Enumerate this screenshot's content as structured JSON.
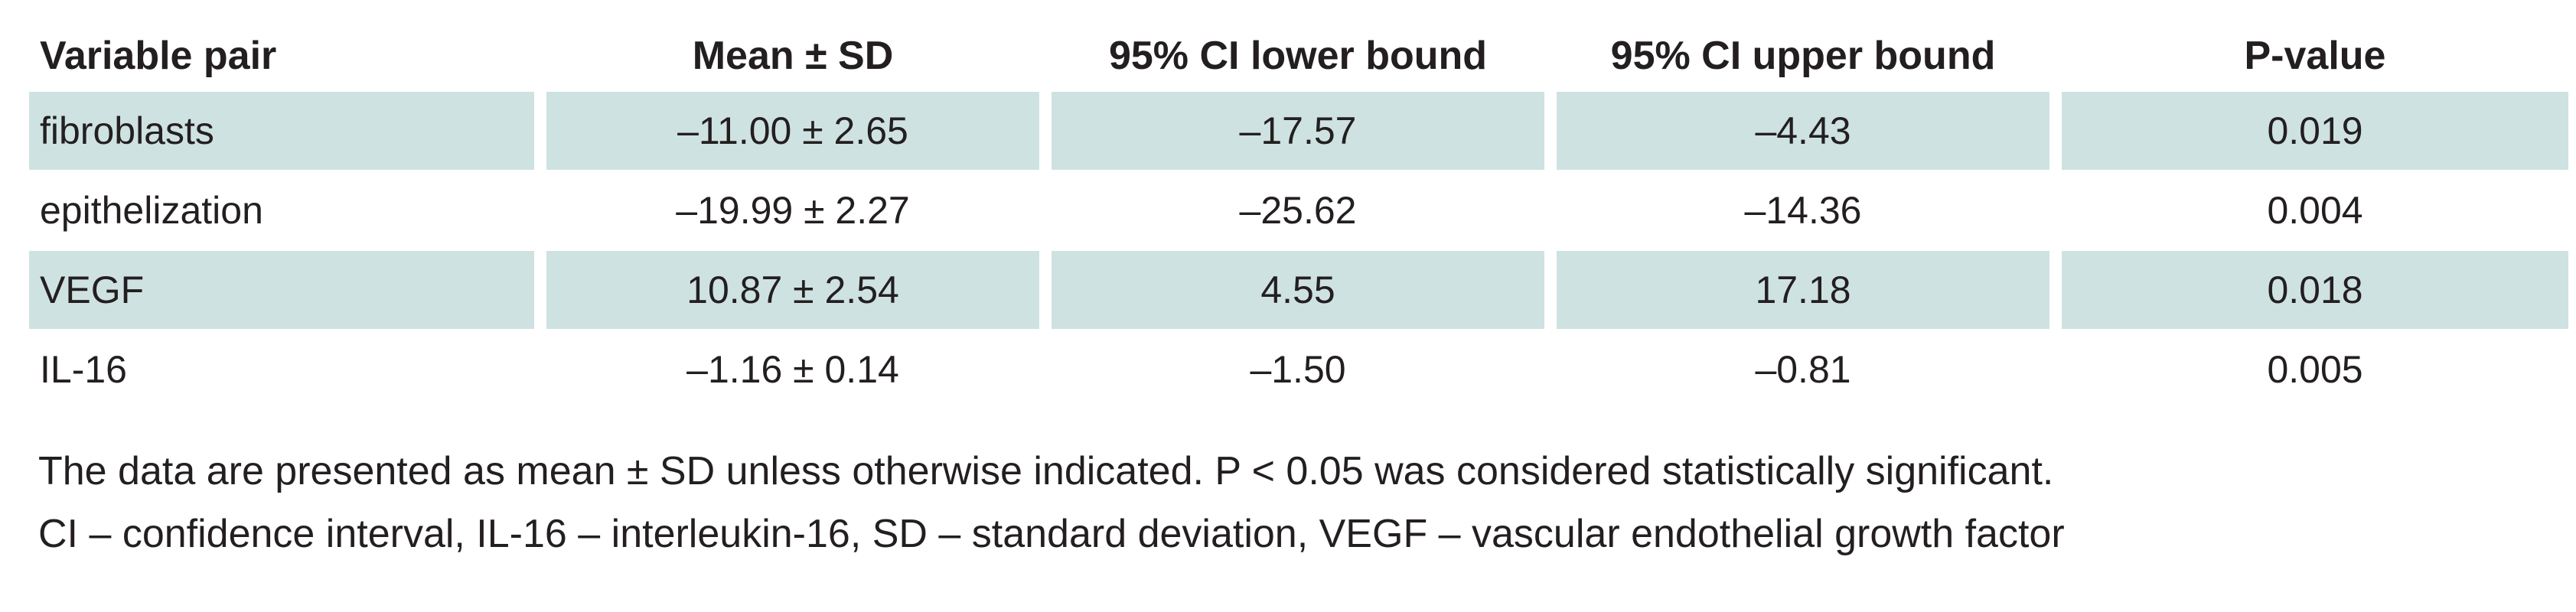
{
  "table": {
    "headers": [
      "Variable pair",
      "Mean ± SD",
      "95% CI lower bound",
      "95% CI upper bound",
      "P-value"
    ],
    "rows": [
      [
        "fibroblasts",
        "–11.00 ± 2.65",
        "–17.57",
        "–4.43",
        "0.019"
      ],
      [
        "epithelization",
        "–19.99 ± 2.27",
        "–25.62",
        "–14.36",
        "0.004"
      ],
      [
        "VEGF",
        "10.87 ± 2.54",
        "4.55",
        "17.18",
        "0.018"
      ],
      [
        "IL-16",
        "–1.16 ± 0.14",
        "–1.50",
        "–0.81",
        "0.005"
      ]
    ],
    "shading_color": "#cfe2e2"
  },
  "notes": {
    "line1": "The data are presented as mean ± SD unless otherwise indicated. P < 0.05 was considered statistically significant.",
    "line2": "CI – confidence interval, IL-16 – interleukin-16, SD – standard deviation, VEGF – vascular endothelial growth factor"
  }
}
